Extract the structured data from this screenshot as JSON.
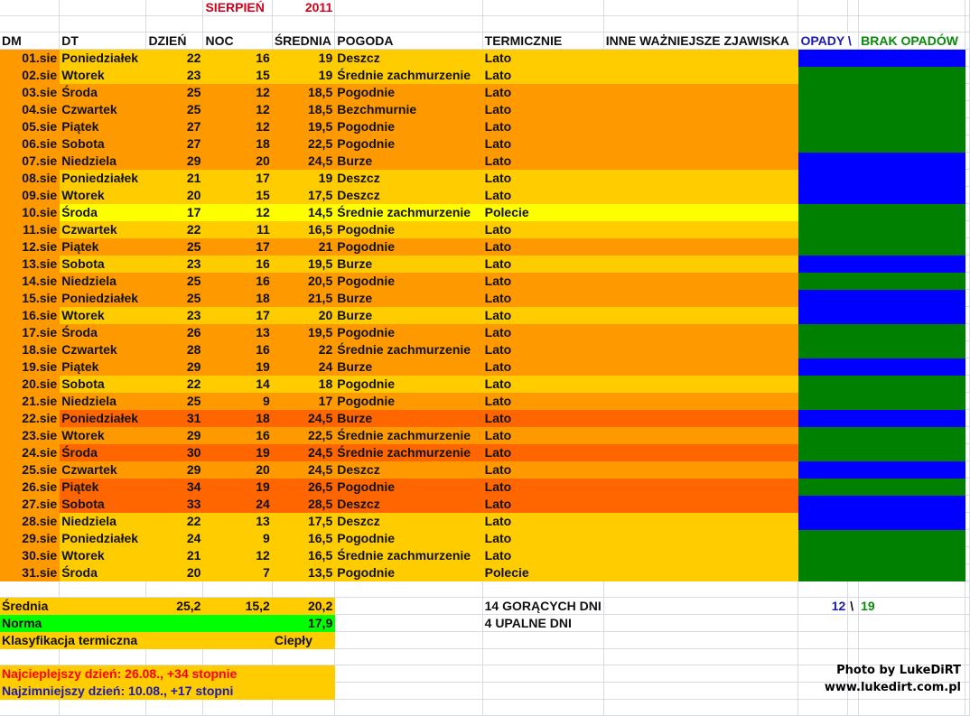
{
  "title": {
    "month": "SIERPIEŃ",
    "year": "2011"
  },
  "colors": {
    "title": "#D0021B",
    "opady": "#1C1CB0",
    "brak": "#0A8A0A",
    "hot_text": "#FF0000",
    "cold_text": "#1C1CB0",
    "light_orange": "#FFCC00",
    "orange": "#FF9900",
    "dark_orange": "#FF6600",
    "yellow": "#FFFF00",
    "opady_fill": "#0000FF",
    "brak_fill": "#008000",
    "norma_fill": "#00FF00"
  },
  "headers": {
    "dm": "DM",
    "dt": "DT",
    "day": "DZIEŃ",
    "night": "NOC",
    "avg": "ŚREDNIA",
    "weather": "POGODA",
    "thermal": "TERMICZNIE",
    "other": "INNE WAŻNIEJSZE ZJAWISKA",
    "opady": "OPADY \\",
    "brak": "BRAK OPADÓW"
  },
  "rows": [
    {
      "dm": "01.sie",
      "dt": "Poniedziałek",
      "day": "22",
      "night": "16",
      "avg": "19",
      "weather": "Deszcz",
      "thermal": "Lato",
      "fill": "lo",
      "precip": "opady"
    },
    {
      "dm": "02.sie",
      "dt": "Wtorek",
      "day": "23",
      "night": "15",
      "avg": "19",
      "weather": "Średnie zachmurzenie",
      "thermal": "Lato",
      "fill": "lo",
      "precip": "brak"
    },
    {
      "dm": "03.sie",
      "dt": "Środa",
      "day": "25",
      "night": "12",
      "avg": "18,5",
      "weather": "Pogodnie",
      "thermal": "Lato",
      "fill": "o",
      "precip": "brak"
    },
    {
      "dm": "04.sie",
      "dt": "Czwartek",
      "day": "25",
      "night": "12",
      "avg": "18,5",
      "weather": "Bezchmurnie",
      "thermal": "Lato",
      "fill": "o",
      "precip": "brak"
    },
    {
      "dm": "05.sie",
      "dt": "Piątek",
      "day": "27",
      "night": "12",
      "avg": "19,5",
      "weather": "Pogodnie",
      "thermal": "Lato",
      "fill": "o",
      "precip": "brak"
    },
    {
      "dm": "06.sie",
      "dt": "Sobota",
      "day": "27",
      "night": "18",
      "avg": "22,5",
      "weather": "Pogodnie",
      "thermal": "Lato",
      "fill": "o",
      "precip": "brak"
    },
    {
      "dm": "07.sie",
      "dt": "Niedziela",
      "day": "29",
      "night": "20",
      "avg": "24,5",
      "weather": "Burze",
      "thermal": "Lato",
      "fill": "o",
      "precip": "opady"
    },
    {
      "dm": "08.sie",
      "dt": "Poniedziałek",
      "day": "21",
      "night": "17",
      "avg": "19",
      "weather": "Deszcz",
      "thermal": "Lato",
      "fill": "lo",
      "precip": "opady"
    },
    {
      "dm": "09.sie",
      "dt": "Wtorek",
      "day": "20",
      "night": "15",
      "avg": "17,5",
      "weather": "Deszcz",
      "thermal": "Lato",
      "fill": "lo",
      "precip": "opady"
    },
    {
      "dm": "10.sie",
      "dt": "Środa",
      "day": "17",
      "night": "12",
      "avg": "14,5",
      "weather": "Średnie zachmurzenie",
      "thermal": "Polecie",
      "fill": "y",
      "precip": "brak"
    },
    {
      "dm": "11.sie",
      "dt": "Czwartek",
      "day": "22",
      "night": "11",
      "avg": "16,5",
      "weather": "Pogodnie",
      "thermal": "Lato",
      "fill": "lo",
      "precip": "brak"
    },
    {
      "dm": "12.sie",
      "dt": "Piątek",
      "day": "25",
      "night": "17",
      "avg": "21",
      "weather": "Pogodnie",
      "thermal": "Lato",
      "fill": "o",
      "precip": "brak"
    },
    {
      "dm": "13.sie",
      "dt": "Sobota",
      "day": "23",
      "night": "16",
      "avg": "19,5",
      "weather": "Burze",
      "thermal": "Lato",
      "fill": "lo",
      "precip": "opady"
    },
    {
      "dm": "14.sie",
      "dt": "Niedziela",
      "day": "25",
      "night": "16",
      "avg": "20,5",
      "weather": "Pogodnie",
      "thermal": "Lato",
      "fill": "o",
      "precip": "brak"
    },
    {
      "dm": "15.sie",
      "dt": "Poniedziałek",
      "day": "25",
      "night": "18",
      "avg": "21,5",
      "weather": "Burze",
      "thermal": "Lato",
      "fill": "o",
      "precip": "opady"
    },
    {
      "dm": "16.sie",
      "dt": "Wtorek",
      "day": "23",
      "night": "17",
      "avg": "20",
      "weather": "Burze",
      "thermal": "Lato",
      "fill": "lo",
      "precip": "opady"
    },
    {
      "dm": "17.sie",
      "dt": "Środa",
      "day": "26",
      "night": "13",
      "avg": "19,5",
      "weather": "Pogodnie",
      "thermal": "Lato",
      "fill": "o",
      "precip": "brak"
    },
    {
      "dm": "18.sie",
      "dt": "Czwartek",
      "day": "28",
      "night": "16",
      "avg": "22",
      "weather": "Średnie zachmurzenie",
      "thermal": "Lato",
      "fill": "o",
      "precip": "brak"
    },
    {
      "dm": "19.sie",
      "dt": "Piątek",
      "day": "29",
      "night": "19",
      "avg": "24",
      "weather": "Burze",
      "thermal": "Lato",
      "fill": "o",
      "precip": "opady"
    },
    {
      "dm": "20.sie",
      "dt": "Sobota",
      "day": "22",
      "night": "14",
      "avg": "18",
      "weather": "Pogodnie",
      "thermal": "Lato",
      "fill": "lo",
      "precip": "brak"
    },
    {
      "dm": "21.sie",
      "dt": "Niedziela",
      "day": "25",
      "night": "9",
      "avg": "17",
      "weather": "Pogodnie",
      "thermal": "Lato",
      "fill": "o",
      "precip": "brak"
    },
    {
      "dm": "22.sie",
      "dt": "Poniedziałek",
      "day": "31",
      "night": "18",
      "avg": "24,5",
      "weather": "Burze",
      "thermal": "Lato",
      "fill": "r",
      "precip": "opady"
    },
    {
      "dm": "23.sie",
      "dt": "Wtorek",
      "day": "29",
      "night": "16",
      "avg": "22,5",
      "weather": "Średnie zachmurzenie",
      "thermal": "Lato",
      "fill": "o",
      "precip": "brak"
    },
    {
      "dm": "24.sie",
      "dt": "Środa",
      "day": "30",
      "night": "19",
      "avg": "24,5",
      "weather": "Średnie zachmurzenie",
      "thermal": "Lato",
      "fill": "r",
      "precip": "brak"
    },
    {
      "dm": "25.sie",
      "dt": "Czwartek",
      "day": "29",
      "night": "20",
      "avg": "24,5",
      "weather": "Deszcz",
      "thermal": "Lato",
      "fill": "o",
      "precip": "opady"
    },
    {
      "dm": "26.sie",
      "dt": "Piątek",
      "day": "34",
      "night": "19",
      "avg": "26,5",
      "weather": "Pogodnie",
      "thermal": "Lato",
      "fill": "r",
      "precip": "brak"
    },
    {
      "dm": "27.sie",
      "dt": "Sobota",
      "day": "33",
      "night": "24",
      "avg": "28,5",
      "weather": "Deszcz",
      "thermal": "Lato",
      "fill": "r",
      "precip": "opady"
    },
    {
      "dm": "28.sie",
      "dt": "Niedziela",
      "day": "22",
      "night": "13",
      "avg": "17,5",
      "weather": "Deszcz",
      "thermal": "Lato",
      "fill": "lo",
      "precip": "opady"
    },
    {
      "dm": "29.sie",
      "dt": "Poniedziałek",
      "day": "24",
      "night": "9",
      "avg": "16,5",
      "weather": "Pogodnie",
      "thermal": "Lato",
      "fill": "lo",
      "precip": "brak"
    },
    {
      "dm": "30.sie",
      "dt": "Wtorek",
      "day": "21",
      "night": "12",
      "avg": "16,5",
      "weather": "Średnie zachmurzenie",
      "thermal": "Lato",
      "fill": "lo",
      "precip": "brak"
    },
    {
      "dm": "31.sie",
      "dt": "Środa",
      "day": "20",
      "night": "7",
      "avg": "13,5",
      "weather": "Pogodnie",
      "thermal": "Polecie",
      "fill": "lo",
      "precip": "brak"
    }
  ],
  "summary": {
    "avg_label": "Średnia",
    "avg_day": "25,2",
    "avg_night": "15,2",
    "avg_avg": "20,2",
    "norm_label": "Norma",
    "norm_value": "17,9",
    "class_label": "Klasyfikacja termiczna",
    "class_value": "Ciepły",
    "hot_days": "14 GORĄCYCH DNI",
    "heat_days": "4 UPALNE DNI",
    "opady_count": "12",
    "separator": "\\",
    "brak_count": "19",
    "warmest": "Najcieplejszy dzień: 26.08., +34 stopnie",
    "coldest": "Najzimniejszy dzień: 10.08., +17 stopni"
  },
  "credit": {
    "line1": "Photo by LukeDiRT",
    "line2": "www.lukedirt.com.pl"
  }
}
